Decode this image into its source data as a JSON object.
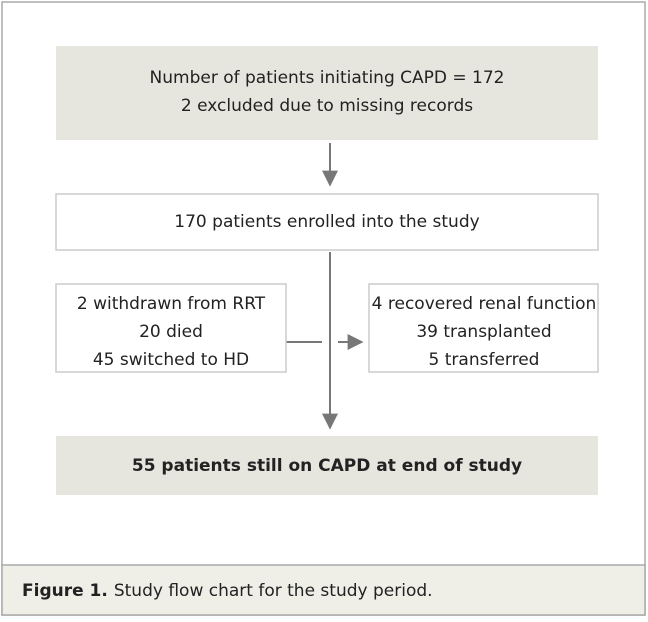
{
  "boxes": [
    {
      "lines": [
        "Number of patients initiating CAPD = 172",
        "2 excluded due to missing records"
      ]
    },
    {
      "lines": [
        "170 patients enrolled into the study"
      ]
    },
    {
      "lines": [
        "2 withdrawn from RRT",
        "20 died",
        "45 switched to HD"
      ]
    },
    {
      "lines": [
        "4 recovered renal function",
        "39 transplanted",
        "5 transferred"
      ]
    },
    {
      "lines": [
        "55 patients still on CAPD at end of study"
      ]
    }
  ],
  "caption": {
    "label": "Figure 1.",
    "text": "Study flow chart for the study period."
  }
}
